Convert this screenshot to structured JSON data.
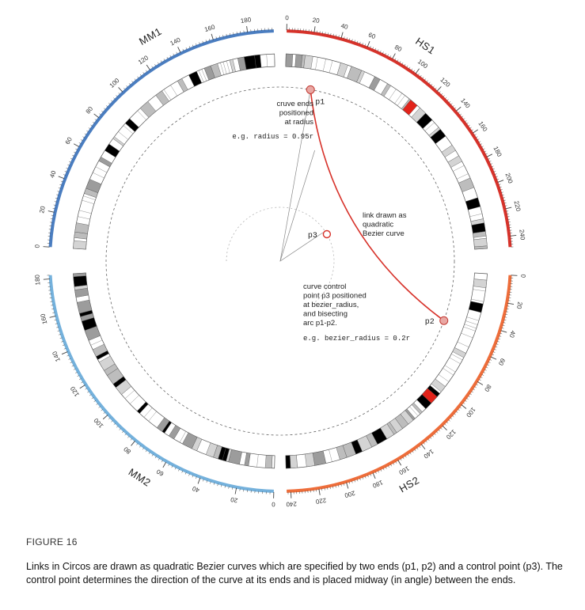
{
  "chromosomes": [
    {
      "name": "HS1",
      "color": "#d7322a",
      "length": 248,
      "start_deg": 1.6,
      "end_deg": 86.5,
      "tick_step": 20,
      "label_every": 20,
      "label_deg": 34
    },
    {
      "name": "HS2",
      "color": "#ee6d3a",
      "length": 243,
      "start_deg": 93.5,
      "end_deg": 178.4,
      "tick_step": 20,
      "label_every": 20,
      "label_deg": 150
    },
    {
      "name": "MM2",
      "color": "#74b1dc",
      "length": 182,
      "start_deg": 181.6,
      "end_deg": 266.5,
      "tick_step": 20,
      "label_every": 20,
      "label_deg": 213
    },
    {
      "name": "MM1",
      "color": "#4a7dc0",
      "length": 195,
      "start_deg": 273.5,
      "end_deg": 358.4,
      "tick_step": 20,
      "label_every": 20,
      "label_deg": 330
    }
  ],
  "ticks": {
    "HS1": [
      "0",
      "20",
      "40",
      "60",
      "80",
      "100",
      "120",
      "140",
      "160",
      "180",
      "200",
      "220",
      "240"
    ],
    "HS2": [
      "0",
      "20",
      "40",
      "60",
      "80",
      "100",
      "120",
      "140",
      "160",
      "180",
      "200",
      "220",
      "240"
    ],
    "MM2": [
      "0",
      "20",
      "40",
      "60",
      "80",
      "100",
      "120",
      "140",
      "160",
      "180"
    ],
    "MM1": [
      "0",
      "20",
      "40",
      "60",
      "80",
      "100",
      "120",
      "140",
      "160",
      "180"
    ]
  },
  "annotations": {
    "ends_title": [
      "cruve ends",
      "positioned",
      "at radius"
    ],
    "ends_example": "e.g. radius = 0.95r",
    "link_desc": [
      "link drawn as",
      "quadratic",
      "Bezier curve"
    ],
    "control_desc": [
      "curve control",
      "point p3 positioned",
      "at bezier_radius,",
      "and bisecting",
      "arc p1-p2."
    ],
    "control_example": "e.g. bezier_radius = 0.2r",
    "p1": "p1",
    "p2": "p2",
    "p3": "p3"
  },
  "link": {
    "color": "#d7322a",
    "end_radius_frac": 0.95,
    "bezier_radius_frac": 0.2,
    "p1_deg": 10,
    "p2_deg": 110
  },
  "figure_label": "FIGURE 16",
  "caption": "Links in Circos are drawn as quadratic Bezier curves which are specified by two ends (p1, p2) and a control point (p3). The control point determines the direction of the curve at its ends and is placed midway (in angle) between the ends."
}
